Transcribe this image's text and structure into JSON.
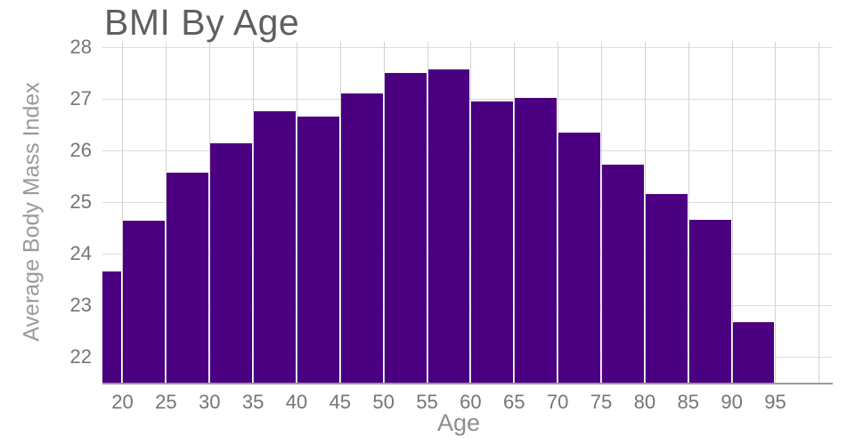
{
  "chart_data": {
    "type": "bar",
    "title": "BMI By Age",
    "xlabel": "Age",
    "ylabel": "Average Body Mass Index",
    "bar_color": "#4B0082",
    "grid": true,
    "legend": "none",
    "bins": [
      [
        17.7,
        20
      ],
      [
        20,
        25
      ],
      [
        25,
        30
      ],
      [
        30,
        35
      ],
      [
        35,
        40
      ],
      [
        40,
        45
      ],
      [
        45,
        50
      ],
      [
        50,
        55
      ],
      [
        55,
        60
      ],
      [
        60,
        65
      ],
      [
        65,
        70
      ],
      [
        70,
        75
      ],
      [
        75,
        80
      ],
      [
        80,
        85
      ],
      [
        85,
        90
      ],
      [
        90,
        95
      ]
    ],
    "values": [
      23.66,
      24.63,
      25.56,
      26.14,
      26.76,
      26.65,
      27.1,
      27.5,
      27.57,
      26.95,
      27.02,
      26.35,
      25.73,
      25.16,
      24.65,
      22.68
    ],
    "x_ticks": [
      20,
      25,
      30,
      35,
      40,
      45,
      50,
      55,
      60,
      65,
      70,
      75,
      80,
      85,
      90,
      95
    ],
    "x_gridlines": [
      20,
      25,
      30,
      35,
      40,
      45,
      50,
      55,
      60,
      65,
      70,
      75,
      80,
      85,
      90,
      95,
      100
    ],
    "y_ticks": [
      22,
      23,
      24,
      25,
      26,
      27,
      28
    ],
    "xlim": [
      17.7,
      101.6
    ],
    "ylim": [
      21.5,
      28.1
    ]
  }
}
